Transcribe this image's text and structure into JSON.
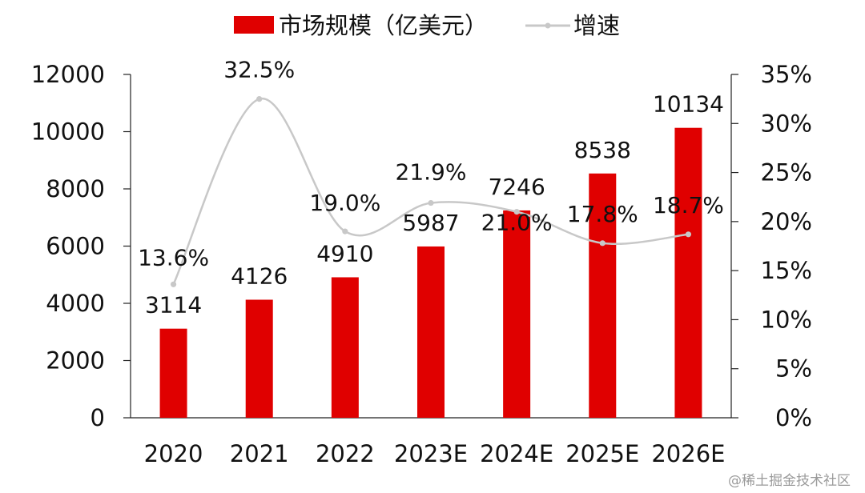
{
  "chart_data": {
    "type": "bar",
    "categories": [
      "2020",
      "2021",
      "2022",
      "2023E",
      "2024E",
      "2025E",
      "2026E"
    ],
    "series": [
      {
        "name": "市场规模（亿美元）",
        "type": "bar",
        "axis": "left",
        "values": [
          3114,
          4126,
          4910,
          5987,
          7246,
          8538,
          10134
        ],
        "labels": [
          "3114",
          "4126",
          "4910",
          "5987",
          "7246",
          "8538",
          "10134"
        ]
      },
      {
        "name": "增速",
        "type": "line",
        "axis": "right",
        "values": [
          13.6,
          32.5,
          19.0,
          21.9,
          21.0,
          17.8,
          18.7
        ],
        "labels": [
          "13.6%",
          "32.5%",
          "19.0%",
          "21.9%",
          "21.0%",
          "17.8%",
          "18.7%"
        ]
      }
    ],
    "y_left": {
      "min": 0,
      "max": 12000,
      "ticks": [
        "0",
        "2000",
        "4000",
        "6000",
        "8000",
        "10000",
        "12000"
      ]
    },
    "y_right": {
      "min": 0,
      "max": 35,
      "ticks": [
        "0%",
        "5%",
        "10%",
        "15%",
        "20%",
        "25%",
        "30%",
        "35%"
      ]
    },
    "legend_position": "top",
    "colors": {
      "bar": "#e00000",
      "line": "#c8c8c8"
    }
  },
  "watermark": "@稀土掘金技术社区"
}
